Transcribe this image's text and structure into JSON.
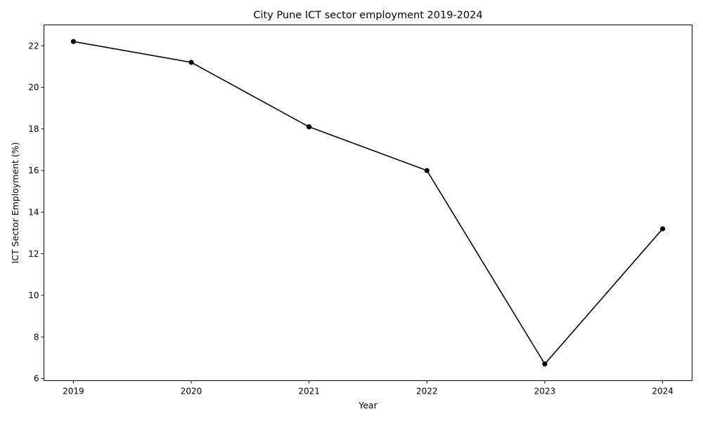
{
  "chart_data": {
    "type": "line",
    "title": "City Pune ICT sector employment 2019-2024",
    "xlabel": "Year",
    "ylabel": "ICT Sector Employment (%)",
    "x": [
      "2019",
      "2020",
      "2021",
      "2022",
      "2023",
      "2024"
    ],
    "series": [
      {
        "values": [
          22.2,
          21.2,
          18.1,
          16.0,
          6.7,
          13.2
        ],
        "color": "#000000",
        "marker": "circle"
      }
    ],
    "ylim": [
      5.9,
      23.0
    ],
    "yticks": [
      6,
      8,
      10,
      12,
      14,
      16,
      18,
      20,
      22
    ],
    "xlim": [
      2018.75,
      2024.25
    ],
    "grid": false,
    "legend": "none"
  }
}
